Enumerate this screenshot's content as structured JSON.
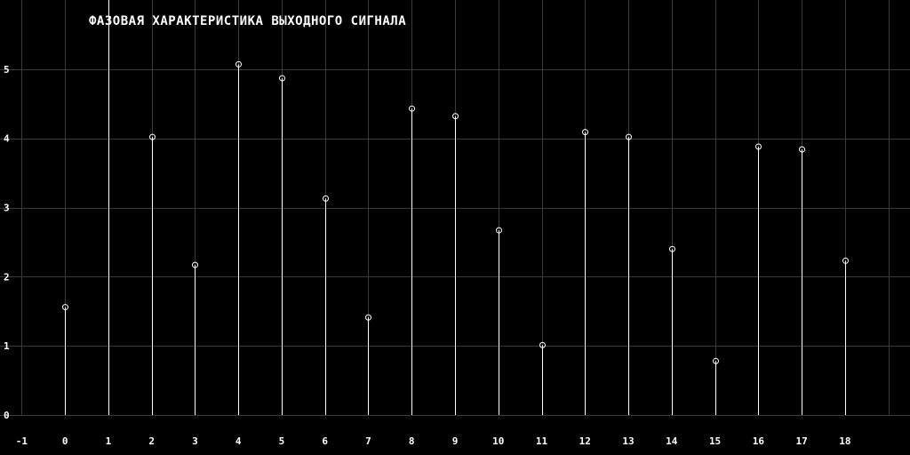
{
  "chart_data": {
    "type": "stem",
    "title": "ФАЗОВАЯ ХАРАКТЕРИСТИКА ВЫХОДНОГО СИГНАЛА",
    "xlabel": "",
    "ylabel": "",
    "xlim": [
      -1.5,
      19.5
    ],
    "ylim": [
      0,
      6
    ],
    "x_ticks": [
      -1,
      0,
      1,
      2,
      3,
      4,
      5,
      6,
      7,
      8,
      9,
      10,
      11,
      12,
      13,
      14,
      15,
      16,
      17,
      18
    ],
    "y_ticks": [
      0,
      1,
      2,
      3,
      4,
      5
    ],
    "grid": true,
    "colors": {
      "background": "#000000",
      "grid": "#3a3a3a",
      "stem": "#ffffff",
      "text": "#ffffff"
    },
    "series": [
      {
        "x": [
          0,
          1,
          2,
          3,
          4,
          5,
          6,
          7,
          8,
          9,
          10,
          11,
          12,
          13,
          14,
          15,
          16,
          17,
          18
        ],
        "values": [
          1.56,
          6.28,
          4.02,
          2.17,
          5.07,
          4.87,
          3.13,
          1.41,
          4.43,
          4.32,
          2.67,
          1.01,
          4.09,
          4.02,
          2.4,
          0.78,
          3.88,
          3.84,
          2.23
        ]
      }
    ]
  }
}
